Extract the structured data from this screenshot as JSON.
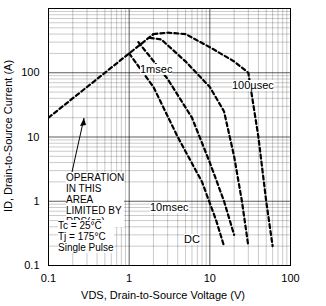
{
  "chart_data": {
    "type": "line",
    "log": true,
    "grid": true,
    "xlabel": "VDS, Drain-to-Source Voltage (V)",
    "ylabel": "ID, Drain-to-Source Current (A)",
    "xlim": [
      0.1,
      100
    ],
    "ylim": [
      0.1,
      1000
    ],
    "xticks": [
      0.1,
      1,
      10,
      100
    ],
    "yticks": [
      0.1,
      1,
      10,
      100
    ],
    "annotations": [
      "OPERATION\nIN THIS\nAREA\nLIMITED BY\nRDS(on)",
      "Tc = 25°C\nTj = 175°C\nSingle Pulse"
    ],
    "series": [
      {
        "color": "#000000",
        "line_style": "dashed",
        "x": [
          0.1,
          0.3,
          1,
          2
        ],
        "values": [
          20,
          60,
          200,
          400
        ]
      },
      {
        "name": "100µsec",
        "color": "#000000",
        "line_style": "dashed",
        "x": [
          2,
          3,
          5,
          10,
          20,
          30,
          40,
          50,
          60
        ],
        "values": [
          400,
          420,
          400,
          250,
          150,
          100,
          10,
          1,
          0.2
        ]
      },
      {
        "name": "1msec",
        "color": "#000000",
        "line_style": "dashed",
        "x": [
          1.8,
          2.5,
          5,
          10,
          15,
          20,
          25,
          30
        ],
        "values": [
          350,
          330,
          150,
          60,
          25,
          5,
          1,
          0.2
        ]
      },
      {
        "name": "10msec",
        "color": "#000000",
        "line_style": "dashed",
        "x": [
          1.3,
          3,
          6,
          10,
          15,
          20
        ],
        "values": [
          300,
          80,
          20,
          4,
          1,
          0.3
        ]
      },
      {
        "name": "DC",
        "color": "#000000",
        "line_style": "dashed",
        "x": [
          1,
          2,
          4,
          8,
          12,
          15
        ],
        "values": [
          200,
          60,
          10,
          2,
          0.5,
          0.2
        ]
      }
    ]
  }
}
